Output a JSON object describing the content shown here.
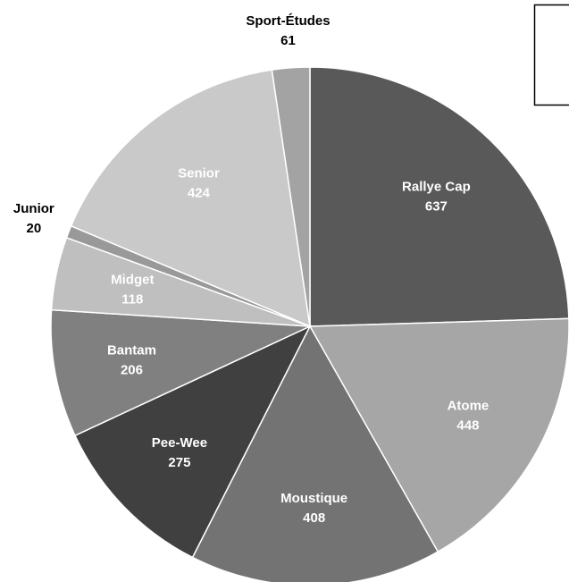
{
  "chart_data": {
    "type": "pie",
    "categories": [
      "Rallye Cap",
      "Atome",
      "Moustique",
      "Pee-Wee",
      "Bantam",
      "Midget",
      "Junior",
      "Senior",
      "Sport-Études"
    ],
    "values": [
      637,
      448,
      408,
      275,
      206,
      118,
      20,
      424,
      61
    ],
    "colors": [
      "#595959",
      "#a6a6a6",
      "#737373",
      "#404040",
      "#808080",
      "#bfbfbf",
      "#999999",
      "#c9c9c9",
      "#a3a3a3"
    ]
  }
}
